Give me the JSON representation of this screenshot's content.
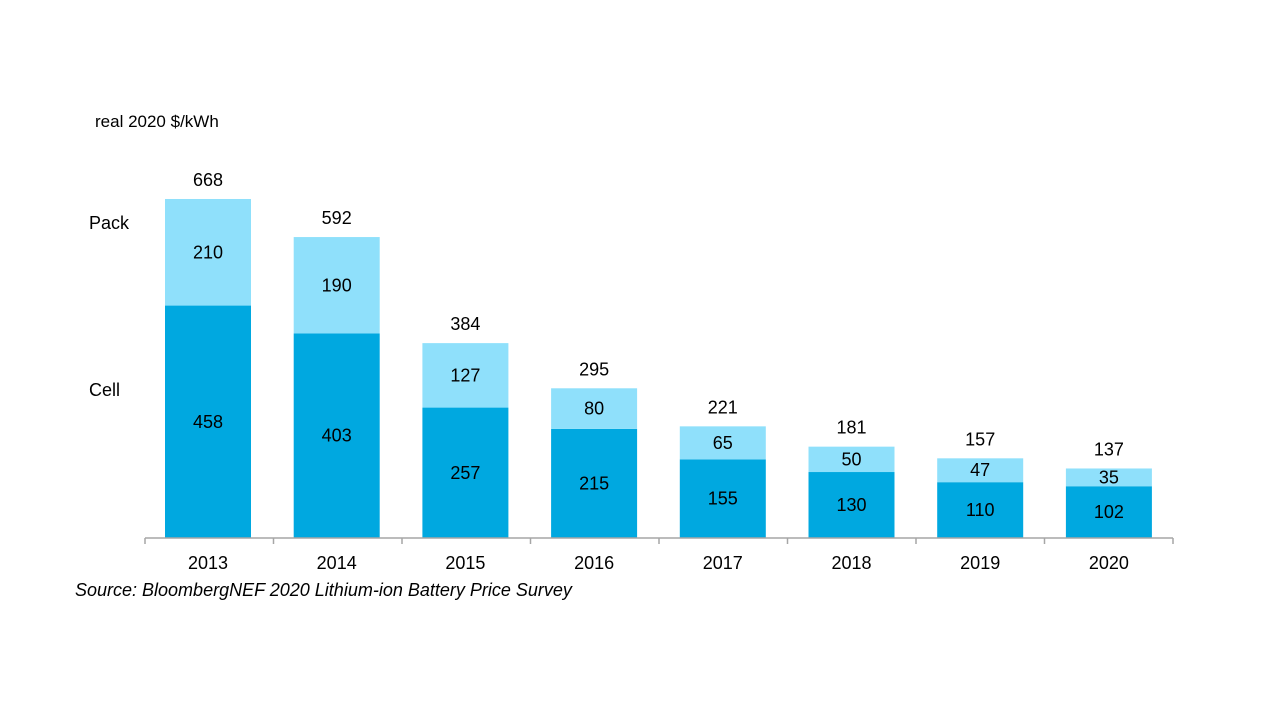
{
  "chart_data": {
    "type": "bar",
    "stacked": true,
    "ylabel": "real 2020 $/kWh",
    "categories": [
      "2013",
      "2014",
      "2015",
      "2016",
      "2017",
      "2018",
      "2019",
      "2020"
    ],
    "series": [
      {
        "name": "Cell",
        "values": [
          458,
          403,
          257,
          215,
          155,
          130,
          110,
          102
        ],
        "color": "#00a8e0"
      },
      {
        "name": "Pack",
        "values": [
          210,
          190,
          127,
          80,
          65,
          50,
          47,
          35
        ],
        "color": "#8fe0fb"
      }
    ],
    "totals": [
      "668",
      "592",
      "384",
      "295",
      "221",
      "181",
      "157",
      "137"
    ],
    "grid": false,
    "legend": "left"
  },
  "source": "Source: BloombergNEF 2020 Lithium-ion Battery Price Survey"
}
